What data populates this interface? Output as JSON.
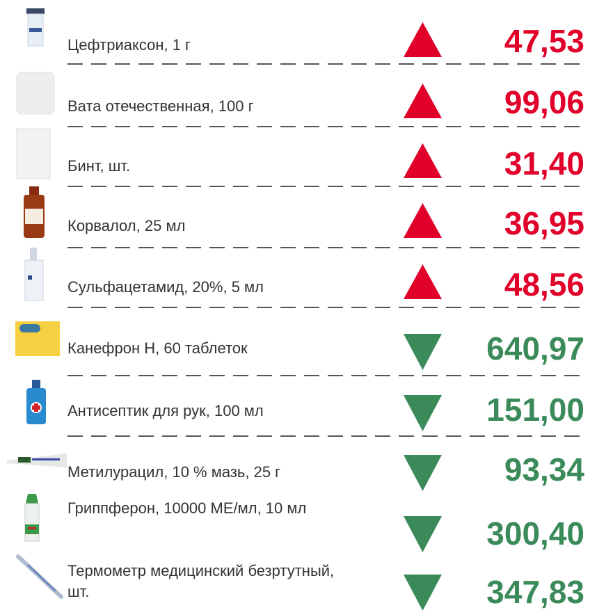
{
  "items": [
    {
      "label": "Цефтриаксон, 1 г",
      "price": "47,53",
      "trend": "up"
    },
    {
      "label": "Вата отечественная, 100 г",
      "price": "99,06",
      "trend": "up"
    },
    {
      "label": "Бинт, шт.",
      "price": "31,40",
      "trend": "up"
    },
    {
      "label": "Корвалол, 25 мл",
      "price": "36,95",
      "trend": "up"
    },
    {
      "label": "Сульфацетамид, 20%, 5 мл",
      "price": "48,56",
      "trend": "up"
    },
    {
      "label": "Канефрон Н, 60 таблеток",
      "price": "640,97",
      "trend": "down"
    },
    {
      "label": "Антисептик для рук, 100 мл",
      "price": "151,00",
      "trend": "down"
    },
    {
      "label": "Метилурацил, 10 % мазь, 25 г",
      "price": "93,34",
      "trend": "down"
    },
    {
      "label": "Гриппферон, 10000 МЕ/мл, 10 мл",
      "price": "300,40",
      "trend": "down"
    },
    {
      "label": "Термометр медицинский безртутный, шт.",
      "price": "347,83",
      "trend": "down"
    }
  ]
}
